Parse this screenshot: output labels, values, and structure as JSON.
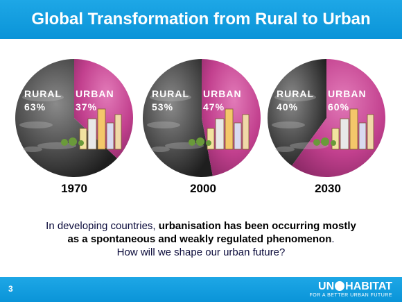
{
  "header": {
    "title": "Global Transformation from Rural to Urban"
  },
  "chart_data": {
    "type": "pie",
    "charts": [
      {
        "year": "1970",
        "rural_label": "RURAL",
        "urban_label": "URBAN",
        "rural_text": "63%",
        "urban_text": "37%",
        "rural": 63,
        "urban": 37
      },
      {
        "year": "2000",
        "rural_label": "RURAL",
        "urban_label": "URBAN",
        "rural_text": "53%",
        "urban_text": "47%",
        "rural": 53,
        "urban": 47
      },
      {
        "year": "2030",
        "rural_label": "RURAL",
        "urban_label": "URBAN",
        "rural_text": "40%",
        "urban_text": "60%",
        "rural": 40,
        "urban": 60
      }
    ],
    "colors": {
      "rural": "#4a4a4a",
      "urban": "#c2408e"
    }
  },
  "caption": {
    "line1_plain": "In developing countries, ",
    "line1_bold": "urbanisation has been occurring mostly",
    "line2_bold": "as a spontaneous and weakly regulated phenomenon",
    "line2_end": ".",
    "line3": "How will we shape our urban future?"
  },
  "footer": {
    "page_number": "3",
    "logo_left": "UN",
    "logo_right": "HABITAT",
    "logo_tagline": "FOR A BETTER URBAN FUTURE"
  }
}
